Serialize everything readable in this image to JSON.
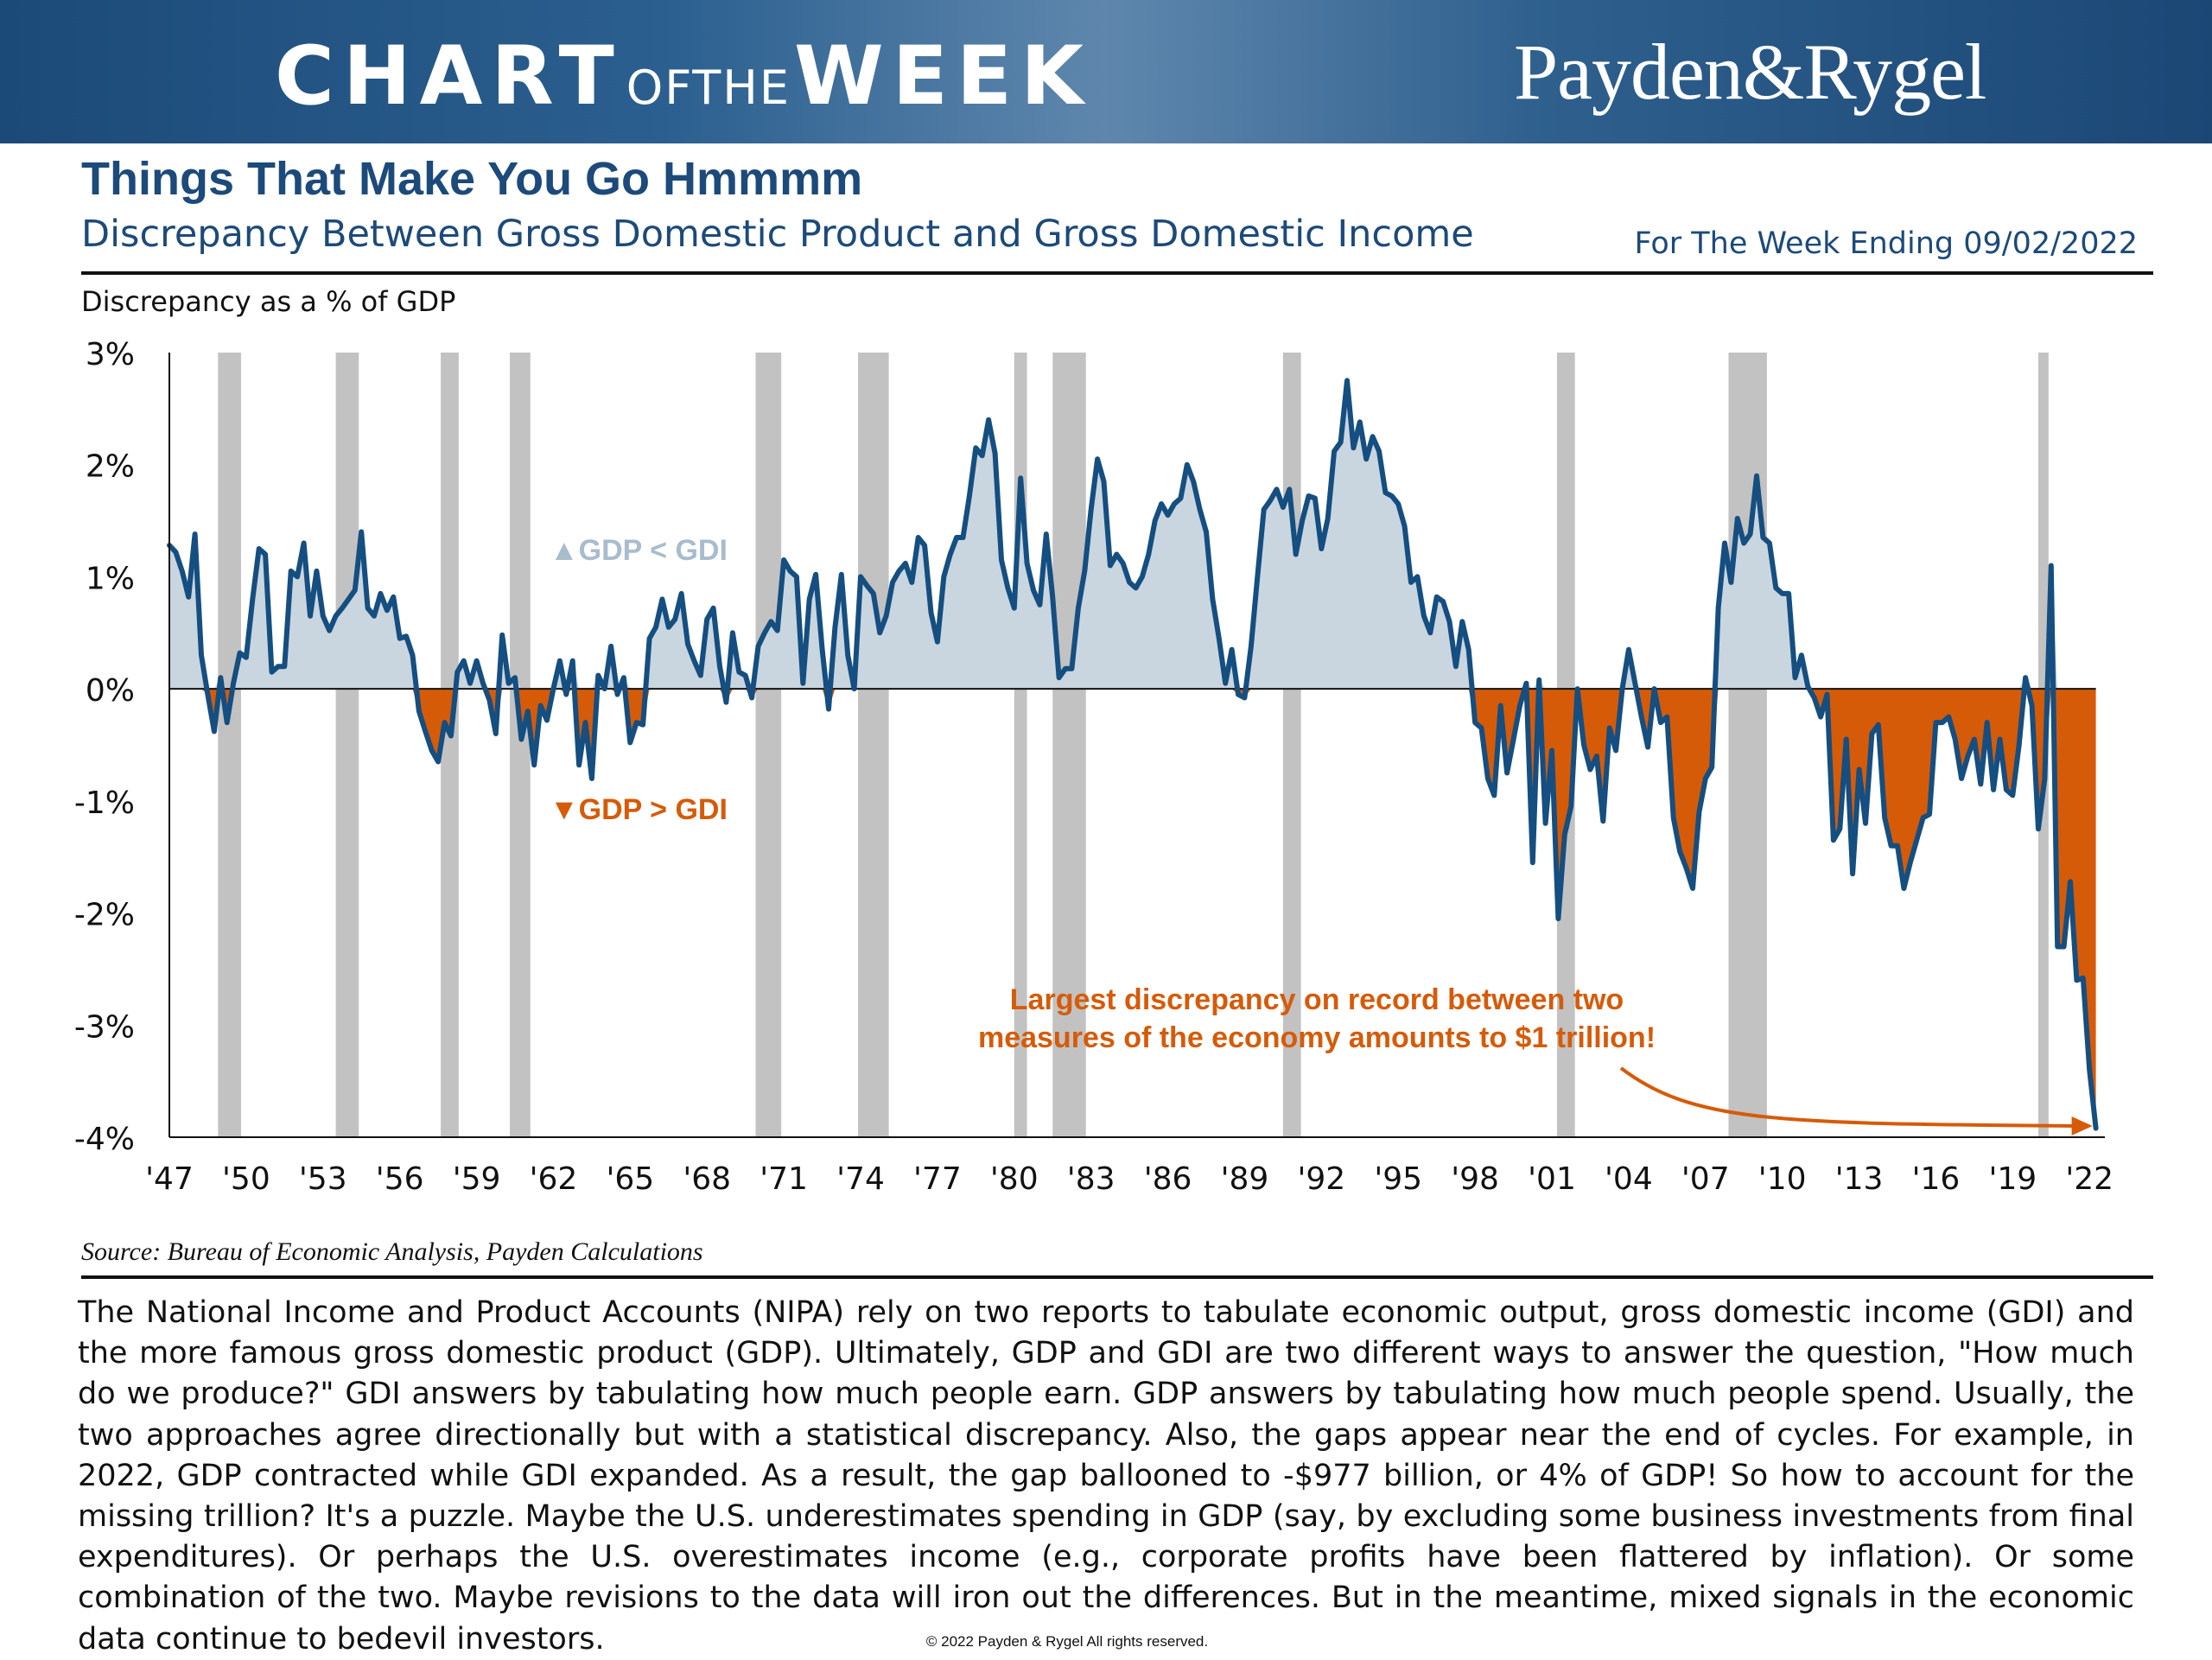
{
  "header": {
    "title_part1": "CHART",
    "title_part2": "OFTHE",
    "title_part3": "WEEK",
    "brand": "Payden&Rygel"
  },
  "headline": "Things That Make You Go Hmmmm",
  "subheadline": "Discrepancy Between Gross Domestic Product and Gross Domestic Income",
  "week_ending": "For The Week Ending 09/02/2022",
  "source": "Source: Bureau of Economic Analysis, Payden Calculations",
  "body": "The National Income and Product Accounts (NIPA) rely on two reports to tabulate economic output, gross domestic income (GDI) and the more famous gross domestic product (GDP). Ultimately, GDP and GDI are two different ways to answer the question, \"How much do we produce?\" GDI answers by tabulating how much people earn. GDP answers by tabulating how much people spend. Usually, the two approaches agree directionally but with a statistical discrepancy. Also, the gaps appear near the end of cycles. For example, in 2022, GDP contracted while GDI expanded. As a result, the gap ballooned to -$977 billion, or 4% of GDP! So how to account for the missing trillion? It's a puzzle. Maybe the U.S. underestimates spending in GDP (say, by excluding some business investments from final expenditures). Or perhaps the U.S. overestimates income (e.g., corporate profits have been flattered by inflation). Or some combination of the two. Maybe revisions to the data will iron out the differences. But in the meantime, mixed signals in the economic data continue to bedevil investors.",
  "copyright": "© 2022 Payden & Rygel All rights reserved.",
  "colors": {
    "banner": "#1c4a78",
    "navy": "#1c4a7a",
    "line": "#154e80",
    "positive_fill": "#c9d6e0",
    "negative_fill": "#d65b08",
    "recession": "#c2c2c2",
    "annotation": "#d65b08",
    "label_positive": "#a9bccc"
  },
  "chart_data": {
    "type": "area",
    "title": "Discrepancy Between Gross Domestic Product and Gross Domestic Income",
    "ylabel": "Discrepancy as a % of GDP",
    "xlabel": "",
    "ylim": [
      -4,
      3
    ],
    "xlim": [
      1947,
      2022.6
    ],
    "yticks": [
      3,
      2,
      1,
      0,
      -1,
      -2,
      -3,
      -4
    ],
    "ytick_labels": [
      "3%",
      "2%",
      "1%",
      "0%",
      "-1%",
      "-2%",
      "-3%",
      "-4%"
    ],
    "xticks": [
      1947,
      1950,
      1953,
      1956,
      1959,
      1962,
      1965,
      1968,
      1971,
      1974,
      1977,
      1980,
      1983,
      1986,
      1989,
      1992,
      1995,
      1998,
      2001,
      2004,
      2007,
      2010,
      2013,
      2016,
      2019,
      2022
    ],
    "xtick_labels": [
      "'47",
      "'50",
      "'53",
      "'56",
      "'59",
      "'62",
      "'65",
      "'68",
      "'71",
      "'74",
      "'77",
      "'80",
      "'83",
      "'86",
      "'89",
      "'92",
      "'95",
      "'98",
      "'01",
      "'04",
      "'07",
      "'10",
      "'13",
      "'16",
      "'19",
      "'22"
    ],
    "recessions": [
      [
        1948.9,
        1949.8
      ],
      [
        1953.5,
        1954.4
      ],
      [
        1957.6,
        1958.3
      ],
      [
        1960.3,
        1961.1
      ],
      [
        1969.9,
        1970.9
      ],
      [
        1973.9,
        1975.1
      ],
      [
        1980.0,
        1980.5
      ],
      [
        1981.5,
        1982.8
      ],
      [
        1990.5,
        1991.2
      ],
      [
        2001.2,
        2001.9
      ],
      [
        2007.9,
        2009.4
      ],
      [
        2020.0,
        2020.4
      ]
    ],
    "series": [
      {
        "name": "Discrepancy as a % of GDP",
        "x": [
          1947.0,
          1947.25,
          1947.5,
          1947.75,
          1948.0,
          1948.25,
          1948.5,
          1948.75,
          1949.0,
          1949.25,
          1949.5,
          1949.75,
          1950.0,
          1950.25,
          1950.5,
          1950.75,
          1951.0,
          1951.25,
          1951.5,
          1951.75,
          1952.0,
          1952.25,
          1952.5,
          1952.75,
          1953.0,
          1953.25,
          1953.5,
          1953.75,
          1954.0,
          1954.25,
          1954.5,
          1954.75,
          1955.0,
          1955.25,
          1955.5,
          1955.75,
          1956.0,
          1956.25,
          1956.5,
          1956.75,
          1957.0,
          1957.25,
          1957.5,
          1957.75,
          1958.0,
          1958.25,
          1958.5,
          1958.75,
          1959.0,
          1959.25,
          1959.5,
          1959.75,
          1960.0,
          1960.25,
          1960.5,
          1960.75,
          1961.0,
          1961.25,
          1961.5,
          1961.75,
          1962.0,
          1962.25,
          1962.5,
          1962.75,
          1963.0,
          1963.25,
          1963.5,
          1963.75,
          1964.0,
          1964.25,
          1964.5,
          1964.75,
          1965.0,
          1965.25,
          1965.5,
          1965.75,
          1966.0,
          1966.25,
          1966.5,
          1966.75,
          1967.0,
          1967.25,
          1967.5,
          1967.75,
          1968.0,
          1968.25,
          1968.5,
          1968.75,
          1969.0,
          1969.25,
          1969.5,
          1969.75,
          1970.0,
          1970.25,
          1970.5,
          1970.75,
          1971.0,
          1971.25,
          1971.5,
          1971.75,
          1972.0,
          1972.25,
          1972.5,
          1972.75,
          1973.0,
          1973.25,
          1973.5,
          1973.75,
          1974.0,
          1974.25,
          1974.5,
          1974.75,
          1975.0,
          1975.25,
          1975.5,
          1975.75,
          1976.0,
          1976.25,
          1976.5,
          1976.75,
          1977.0,
          1977.25,
          1977.5,
          1977.75,
          1978.0,
          1978.25,
          1978.5,
          1978.75,
          1979.0,
          1979.25,
          1979.5,
          1979.75,
          1980.0,
          1980.25,
          1980.5,
          1980.75,
          1981.0,
          1981.25,
          1981.5,
          1981.75,
          1982.0,
          1982.25,
          1982.5,
          1982.75,
          1983.0,
          1983.25,
          1983.5,
          1983.75,
          1984.0,
          1984.25,
          1984.5,
          1984.75,
          1985.0,
          1985.25,
          1985.5,
          1985.75,
          1986.0,
          1986.25,
          1986.5,
          1986.75,
          1987.0,
          1987.25,
          1987.5,
          1987.75,
          1988.0,
          1988.25,
          1988.5,
          1988.75,
          1989.0,
          1989.25,
          1989.5,
          1989.75,
          1990.0,
          1990.25,
          1990.5,
          1990.75,
          1991.0,
          1991.25,
          1991.5,
          1991.75,
          1992.0,
          1992.25,
          1992.5,
          1992.75,
          1993.0,
          1993.25,
          1993.5,
          1993.75,
          1994.0,
          1994.25,
          1994.5,
          1994.75,
          1995.0,
          1995.25,
          1995.5,
          1995.75,
          1996.0,
          1996.25,
          1996.5,
          1996.75,
          1997.0,
          1997.25,
          1997.5,
          1997.75,
          1998.0,
          1998.25,
          1998.5,
          1998.75,
          1999.0,
          1999.25,
          1999.5,
          1999.75,
          2000.0,
          2000.25,
          2000.5,
          2000.75,
          2001.0,
          2001.25,
          2001.5,
          2001.75,
          2002.0,
          2002.25,
          2002.5,
          2002.75,
          2003.0,
          2003.25,
          2003.5,
          2003.75,
          2004.0,
          2004.25,
          2004.5,
          2004.75,
          2005.0,
          2005.25,
          2005.5,
          2005.75,
          2006.0,
          2006.25,
          2006.5,
          2006.75,
          2007.0,
          2007.25,
          2007.5,
          2007.75,
          2008.0,
          2008.25,
          2008.5,
          2008.75,
          2009.0,
          2009.25,
          2009.5,
          2009.75,
          2010.0,
          2010.25,
          2010.5,
          2010.75,
          2011.0,
          2011.25,
          2011.5,
          2011.75,
          2012.0,
          2012.25,
          2012.5,
          2012.75,
          2013.0,
          2013.25,
          2013.5,
          2013.75,
          2014.0,
          2014.25,
          2014.5,
          2014.75,
          2015.0,
          2015.25,
          2015.5,
          2015.75,
          2016.0,
          2016.25,
          2016.5,
          2016.75,
          2017.0,
          2017.25,
          2017.5,
          2017.75,
          2018.0,
          2018.25,
          2018.5,
          2018.75,
          2019.0,
          2019.25,
          2019.5,
          2019.75,
          2020.0,
          2020.25,
          2020.5,
          2020.75,
          2021.0,
          2021.25,
          2021.5,
          2021.75,
          2022.0,
          2022.25
        ],
        "values": [
          1.28,
          1.22,
          1.05,
          0.82,
          1.38,
          0.3,
          -0.05,
          -0.38,
          0.1,
          -0.3,
          0.05,
          0.32,
          0.28,
          0.8,
          1.25,
          1.2,
          0.15,
          0.2,
          0.2,
          1.05,
          1.0,
          1.3,
          0.65,
          1.05,
          0.65,
          0.52,
          0.65,
          0.72,
          0.8,
          0.88,
          1.4,
          0.72,
          0.65,
          0.85,
          0.7,
          0.82,
          0.45,
          0.47,
          0.3,
          -0.2,
          -0.38,
          -0.55,
          -0.65,
          -0.3,
          -0.42,
          0.15,
          0.25,
          0.05,
          0.25,
          0.05,
          -0.1,
          -0.4,
          0.48,
          0.05,
          0.1,
          -0.45,
          -0.2,
          -0.68,
          -0.15,
          -0.28,
          0.0,
          0.25,
          -0.05,
          0.25,
          -0.68,
          -0.3,
          -0.8,
          0.12,
          0.0,
          0.38,
          -0.05,
          0.1,
          -0.48,
          -0.3,
          -0.32,
          0.45,
          0.55,
          0.8,
          0.55,
          0.62,
          0.85,
          0.4,
          0.25,
          0.12,
          0.62,
          0.72,
          0.2,
          -0.12,
          0.5,
          0.15,
          0.12,
          -0.08,
          0.38,
          0.5,
          0.6,
          0.52,
          1.15,
          1.05,
          1.0,
          0.05,
          0.8,
          1.02,
          0.35,
          -0.18,
          0.55,
          1.02,
          0.3,
          0.0,
          1.0,
          0.92,
          0.85,
          0.5,
          0.65,
          0.95,
          1.05,
          1.12,
          0.95,
          1.35,
          1.28,
          0.68,
          0.42,
          1.0,
          1.2,
          1.35,
          1.35,
          1.72,
          2.15,
          2.08,
          2.4,
          2.1,
          1.15,
          0.9,
          0.72,
          1.88,
          1.12,
          0.88,
          0.75,
          1.38,
          0.82,
          0.1,
          0.18,
          0.18,
          0.72,
          1.05,
          1.6,
          2.05,
          1.85,
          1.1,
          1.2,
          1.12,
          0.95,
          0.9,
          1.0,
          1.2,
          1.5,
          1.65,
          1.55,
          1.65,
          1.7,
          2.0,
          1.85,
          1.6,
          1.4,
          0.8,
          0.45,
          0.05,
          0.35,
          -0.05,
          -0.08,
          0.38,
          1.0,
          1.6,
          1.68,
          1.78,
          1.62,
          1.78,
          1.2,
          1.5,
          1.72,
          1.7,
          1.25,
          1.52,
          2.12,
          2.2,
          2.75,
          2.15,
          2.38,
          2.05,
          2.25,
          2.12,
          1.75,
          1.72,
          1.65,
          1.45,
          0.95,
          1.0,
          0.65,
          0.5,
          0.82,
          0.78,
          0.6,
          0.2,
          0.6,
          0.35,
          -0.3,
          -0.35,
          -0.8,
          -0.95,
          -0.15,
          -0.75,
          -0.45,
          -0.15,
          0.05,
          -1.55,
          0.08,
          -1.2,
          -0.55,
          -2.05,
          -1.3,
          -1.05,
          0.0,
          -0.5,
          -0.72,
          -0.6,
          -1.18,
          -0.35,
          -0.55,
          0.0,
          0.35,
          0.05,
          -0.25,
          -0.52,
          0.0,
          -0.3,
          -0.25,
          -1.15,
          -1.45,
          -1.6,
          -1.78,
          -1.1,
          -0.8,
          -0.7,
          0.72,
          1.3,
          0.95,
          1.52,
          1.3,
          1.38,
          1.9,
          1.35,
          1.3,
          0.9,
          0.85,
          0.85,
          0.1,
          0.3,
          0.02,
          -0.08,
          -0.25,
          -0.05,
          -1.35,
          -1.25,
          -0.45,
          -1.65,
          -0.72,
          -1.2,
          -0.4,
          -0.32,
          -1.15,
          -1.4,
          -1.4,
          -1.78,
          -1.55,
          -1.35,
          -1.15,
          -1.12,
          -0.3,
          -0.3,
          -0.25,
          -0.45,
          -0.8,
          -0.6,
          -0.45,
          -0.85,
          -0.3,
          -0.9,
          -0.45,
          -0.9,
          -0.95,
          -0.5,
          0.1,
          -0.15,
          -1.25,
          -0.8,
          1.1,
          -2.3,
          -2.3,
          -1.72,
          -2.6,
          -2.58,
          -3.4,
          -3.92
        ]
      }
    ],
    "annotations": [
      {
        "text": "▲GDP < GDI",
        "kind": "positive-label"
      },
      {
        "text": "▼GDP > GDI",
        "kind": "negative-label"
      },
      {
        "text_line1": "Largest discrepancy on record between two",
        "text_line2": "measures of the economy amounts to $1 trillion!",
        "kind": "callout",
        "points_to_x": 2022.25
      }
    ]
  }
}
